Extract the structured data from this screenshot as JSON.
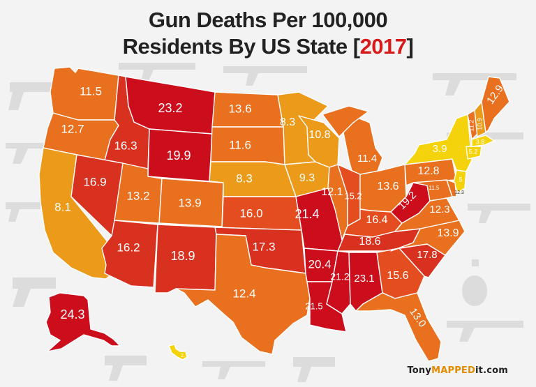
{
  "title": {
    "line1": "Gun Deaths Per 100,000",
    "line2_prefix": "Residents By US State [",
    "year": "2017",
    "line2_suffix": "]"
  },
  "brand": {
    "left": "Tony",
    "mid": "MAPPED",
    "right": "it.com"
  },
  "colors": {
    "background": "#f3f3f3",
    "dark_red": "#cc0d1c",
    "red": "#d9311f",
    "red_orange": "#e34d1f",
    "orange": "#e8701e",
    "amber": "#eb9a1a",
    "yellow": "#f5d30c",
    "silhouette": "#dcdcdc"
  },
  "states": [
    {
      "code": "WA",
      "value": "11.5",
      "color": "#e8701e"
    },
    {
      "code": "OR",
      "value": "12.7",
      "color": "#e8701e"
    },
    {
      "code": "CA",
      "value": "8.1",
      "color": "#eb9a1a"
    },
    {
      "code": "ID",
      "value": "16.3",
      "color": "#d9311f"
    },
    {
      "code": "NV",
      "value": "16.9",
      "color": "#d9311f"
    },
    {
      "code": "MT",
      "value": "23.2",
      "color": "#cc0d1c"
    },
    {
      "code": "WY",
      "value": "19.9",
      "color": "#cc0d1c"
    },
    {
      "code": "UT",
      "value": "13.2",
      "color": "#e8701e"
    },
    {
      "code": "CO",
      "value": "13.9",
      "color": "#e8701e"
    },
    {
      "code": "AZ",
      "value": "16.2",
      "color": "#d9311f"
    },
    {
      "code": "NM",
      "value": "18.9",
      "color": "#d9311f"
    },
    {
      "code": "ND",
      "value": "13.6",
      "color": "#e8701e"
    },
    {
      "code": "SD",
      "value": "11.6",
      "color": "#e8701e"
    },
    {
      "code": "NE",
      "value": "8.3",
      "color": "#eb9a1a"
    },
    {
      "code": "KS",
      "value": "16.0",
      "color": "#e34d1f"
    },
    {
      "code": "OK",
      "value": "17.3",
      "color": "#d9311f"
    },
    {
      "code": "TX",
      "value": "12.4",
      "color": "#e8701e"
    },
    {
      "code": "MN",
      "value": "8.3",
      "color": "#eb9a1a"
    },
    {
      "code": "IA",
      "value": "9.3",
      "color": "#eb9a1a"
    },
    {
      "code": "MO",
      "value": "21.4",
      "color": "#cc0d1c"
    },
    {
      "code": "AR",
      "value": "20.4",
      "color": "#cc0d1c"
    },
    {
      "code": "LA",
      "value": "21.5",
      "color": "#cc0d1c"
    },
    {
      "code": "WI",
      "value": "10.8",
      "color": "#eb9a1a"
    },
    {
      "code": "IL",
      "value": "12.1",
      "color": "#e8701e"
    },
    {
      "code": "MI",
      "value": "11.4",
      "color": "#e8701e"
    },
    {
      "code": "IN",
      "value": "15.2",
      "color": "#e34d1f"
    },
    {
      "code": "OH",
      "value": "13.6",
      "color": "#e8701e"
    },
    {
      "code": "KY",
      "value": "16.4",
      "color": "#e34d1f"
    },
    {
      "code": "TN",
      "value": "18.6",
      "color": "#d9311f"
    },
    {
      "code": "MS",
      "value": "21.2",
      "color": "#cc0d1c"
    },
    {
      "code": "AL",
      "value": "23.1",
      "color": "#cc0d1c"
    },
    {
      "code": "GA",
      "value": "15.6",
      "color": "#e34d1f"
    },
    {
      "code": "FL",
      "value": "13.0",
      "color": "#e8701e"
    },
    {
      "code": "SC",
      "value": "17.8",
      "color": "#d9311f"
    },
    {
      "code": "NC",
      "value": "13.9",
      "color": "#e8701e"
    },
    {
      "code": "VA",
      "value": "12.3",
      "color": "#e8701e"
    },
    {
      "code": "WV",
      "value": "19.2",
      "color": "#cc0d1c"
    },
    {
      "code": "PA",
      "value": "12.8",
      "color": "#e8701e"
    },
    {
      "code": "NY",
      "value": "3.9",
      "color": "#f5d30c"
    },
    {
      "code": "VT",
      "value": "11.2",
      "color": "#e8701e"
    },
    {
      "code": "NH",
      "value": "10.9",
      "color": "#eb9a1a"
    },
    {
      "code": "ME",
      "value": "12.9",
      "color": "#e8701e"
    },
    {
      "code": "MA",
      "value": "3.8",
      "color": "#f5d30c"
    },
    {
      "code": "CT",
      "value": "5.2",
      "color": "#f5d30c"
    },
    {
      "code": "NJ",
      "value": "5",
      "color": "#f5d30c"
    },
    {
      "code": "MD",
      "value": "11.5",
      "color": "#e8701e"
    },
    {
      "code": "DE",
      "value": "12.3",
      "color": "#e8701e"
    },
    {
      "code": "AK",
      "value": "24.3",
      "color": "#cc0d1c"
    },
    {
      "code": "HI",
      "value": "2.",
      "color": "#f5d30c"
    }
  ]
}
